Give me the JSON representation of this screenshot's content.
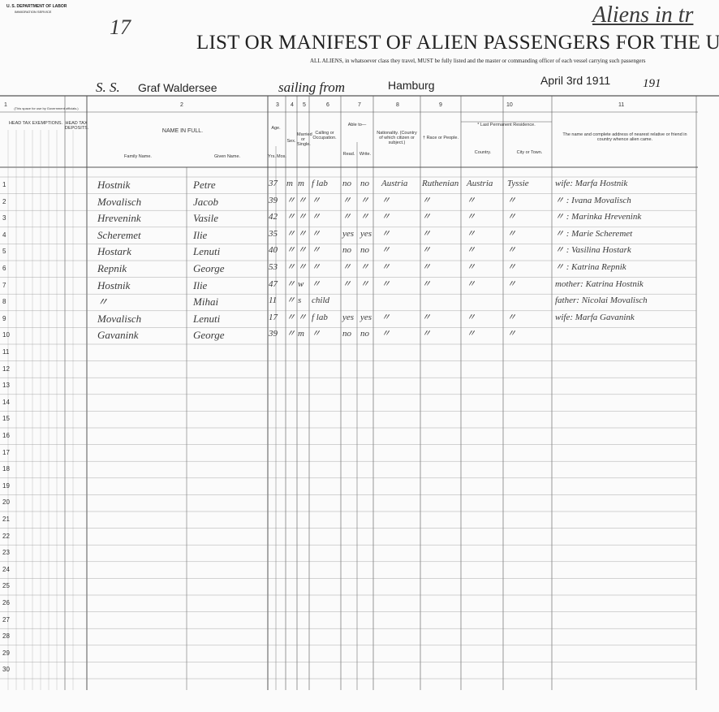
{
  "form": {
    "department": "U. S. DEPARTMENT OF LABOR",
    "service": "IMMIGRATION SERVICE"
  },
  "page_number": "17",
  "stamp": "Aliens in tr",
  "title": "LIST OR MANIFEST OF ALIEN PASSENGERS FOR THE UNITED",
  "subtitle": "ALL ALIENS, in whatsoever class they travel, MUST be fully listed and the master or commanding officer of each vessel carrying such passengers",
  "voyage": {
    "ship_prefix": "S. S.",
    "ship": "Graf Waldersee",
    "sailing_from": "sailing from",
    "port": "Hamburg",
    "date": "April 3rd 1911",
    "year_prefix": "191"
  },
  "column_numbers": [
    "1",
    "2",
    "3",
    "4",
    "5",
    "6",
    "7",
    "8",
    "9",
    "10",
    "11"
  ],
  "column_headers": [
    "(This space for use by Government officials.)",
    "HEAD TAX EXEMPTIONS.",
    "HEAD TAX DEPOSITS.",
    "NAME IN FULL.",
    "Family Name.",
    "Given Name.",
    "Age.",
    "Yrs.",
    "Mos.",
    "Sex.",
    "Married or Single.",
    "Calling or Occupation.",
    "Able to—",
    "Read.",
    "Write.",
    "Nationality. (Country of which citizen or subject.)",
    "† Race or People.",
    "* Last Permanent Residence.",
    "Country.",
    "City or Town.",
    "The name and complete address of nearest relative or friend in country whence alien came."
  ],
  "row_numbers": [
    "1",
    "2",
    "3",
    "4",
    "5",
    "6",
    "7",
    "8",
    "9",
    "10",
    "11",
    "12",
    "13",
    "14",
    "15",
    "16",
    "17",
    "18",
    "19",
    "20",
    "21",
    "22",
    "23",
    "24",
    "25",
    "26",
    "27",
    "28",
    "29",
    "30"
  ],
  "rows": [
    {
      "family": "Hostnik",
      "given": "Petre",
      "age": "37",
      "sex": "m",
      "marital": "m",
      "occupation": "f lab",
      "read": "no",
      "write": "no",
      "nationality": "Austria",
      "race": "Ruthenian",
      "country": "Austria",
      "city": "Tyssie",
      "relative": "wife: Marfa Hostnik"
    },
    {
      "family": "Movalisch",
      "given": "Jacob",
      "age": "39",
      "sex": "〃",
      "marital": "〃",
      "occupation": "〃",
      "read": "〃",
      "write": "〃",
      "nationality": "〃",
      "race": "〃",
      "country": "〃",
      "city": "〃",
      "relative": "〃 : Ivana Movalisch"
    },
    {
      "family": "Hrevenink",
      "given": "Vasile",
      "age": "42",
      "sex": "〃",
      "marital": "〃",
      "occupation": "〃",
      "read": "〃",
      "write": "〃",
      "nationality": "〃",
      "race": "〃",
      "country": "〃",
      "city": "〃",
      "relative": "〃 : Marinka Hrevenink"
    },
    {
      "family": "Scheremet",
      "given": "Ilie",
      "age": "35",
      "sex": "〃",
      "marital": "〃",
      "occupation": "〃",
      "read": "yes",
      "write": "yes",
      "nationality": "〃",
      "race": "〃",
      "country": "〃",
      "city": "〃",
      "relative": "〃 : Marie Scheremet"
    },
    {
      "family": "Hostark",
      "given": "Lenuti",
      "age": "40",
      "sex": "〃",
      "marital": "〃",
      "occupation": "〃",
      "read": "no",
      "write": "no",
      "nationality": "〃",
      "race": "〃",
      "country": "〃",
      "city": "〃",
      "relative": "〃 : Vasilina Hostark"
    },
    {
      "family": "Repnik",
      "given": "George",
      "age": "53",
      "sex": "〃",
      "marital": "〃",
      "occupation": "〃",
      "read": "〃",
      "write": "〃",
      "nationality": "〃",
      "race": "〃",
      "country": "〃",
      "city": "〃",
      "relative": "〃 : Katrina Repnik"
    },
    {
      "family": "Hostnik",
      "given": "Ilie",
      "age": "47",
      "sex": "〃",
      "marital": "w",
      "occupation": "〃",
      "read": "〃",
      "write": "〃",
      "nationality": "〃",
      "race": "〃",
      "country": "〃",
      "city": "〃",
      "relative": "mother: Katrina Hostnik"
    },
    {
      "family": "〃",
      "given": "Mihai",
      "age": "11",
      "sex": "〃",
      "marital": "s",
      "occupation": "child",
      "read": "",
      "write": "",
      "nationality": "",
      "race": "",
      "country": "",
      "city": "",
      "relative": "father: Nicolai Movalisch"
    },
    {
      "family": "Movalisch",
      "given": "Lenuti",
      "age": "17",
      "sex": "〃",
      "marital": "〃",
      "occupation": "f lab",
      "read": "yes",
      "write": "yes",
      "nationality": "〃",
      "race": "〃",
      "country": "〃",
      "city": "〃",
      "relative": "wife: Marfa Gavanink"
    },
    {
      "family": "Gavanink",
      "given": "George",
      "age": "39",
      "sex": "〃",
      "marital": "m",
      "occupation": "〃",
      "read": "no",
      "write": "no",
      "nationality": "〃",
      "race": "〃",
      "country": "〃",
      "city": "〃",
      "relative": ""
    }
  ]
}
